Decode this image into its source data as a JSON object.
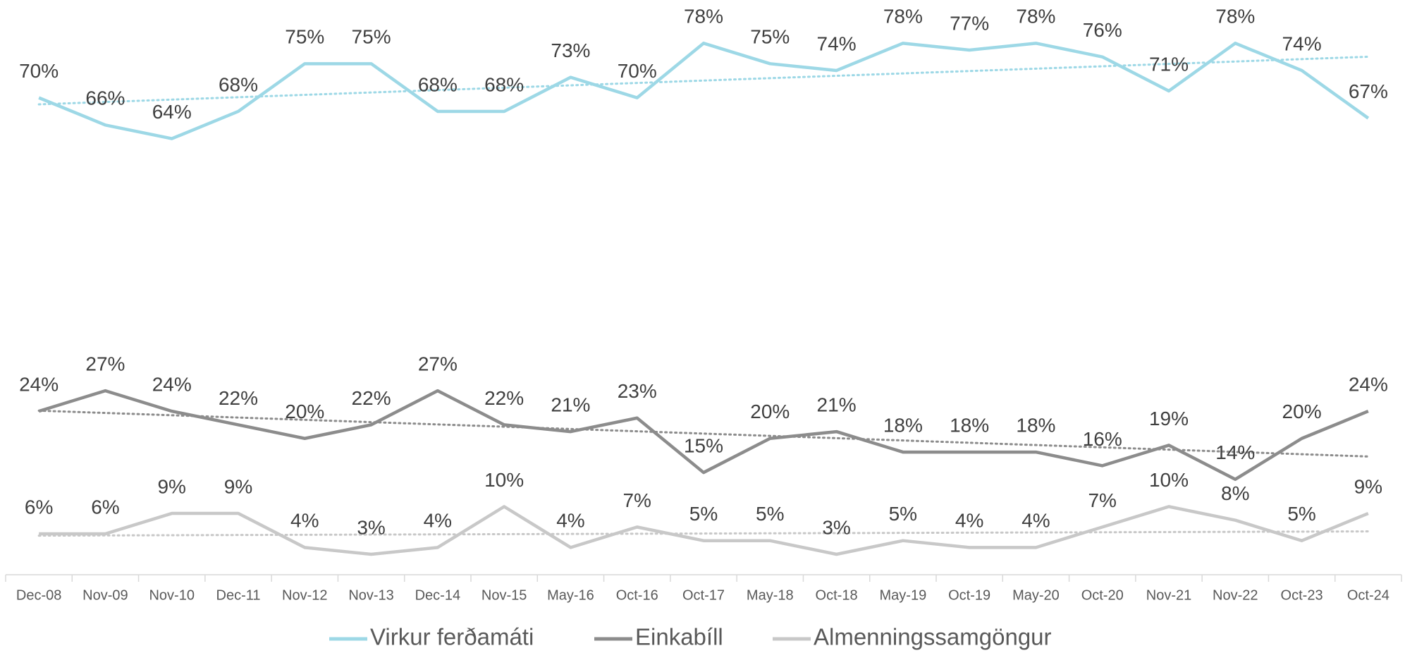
{
  "chart_data": {
    "type": "line",
    "categories": [
      "Dec-08",
      "Nov-09",
      "Nov-10",
      "Dec-11",
      "Nov-12",
      "Nov-13",
      "Dec-14",
      "Nov-15",
      "May-16",
      "Oct-16",
      "Oct-17",
      "May-18",
      "Oct-18",
      "May-19",
      "Oct-19",
      "May-20",
      "Oct-20",
      "Nov-21",
      "Nov-22",
      "Oct-23",
      "Oct-24"
    ],
    "series": [
      {
        "name": "Virkur ferðamáti",
        "color": "#9dd8e6",
        "values": [
          70,
          66,
          64,
          68,
          75,
          75,
          68,
          68,
          73,
          70,
          78,
          75,
          74,
          78,
          77,
          78,
          76,
          71,
          78,
          74,
          67
        ],
        "value_labels": [
          "70%",
          "66%",
          "64%",
          "68%",
          "75%",
          "75%",
          "68%",
          "68%",
          "73%",
          "70%",
          "78%",
          "75%",
          "74%",
          "78%",
          "77%",
          "78%",
          "76%",
          "71%",
          "78%",
          "74%",
          "67%"
        ]
      },
      {
        "name": "Einkabíll",
        "color": "#8c8c8c",
        "values": [
          24,
          27,
          24,
          22,
          20,
          22,
          27,
          22,
          21,
          23,
          15,
          20,
          21,
          18,
          18,
          18,
          16,
          19,
          14,
          20,
          24
        ],
        "value_labels": [
          "24%",
          "27%",
          "24%",
          "22%",
          "20%",
          "22%",
          "27%",
          "22%",
          "21%",
          "23%",
          "15%",
          "20%",
          "21%",
          "18%",
          "18%",
          "18%",
          "16%",
          "19%",
          "14%",
          "20%",
          "24%"
        ]
      },
      {
        "name": "Almenningssamgöngur",
        "color": "#c8c8c8",
        "values": [
          6,
          6,
          9,
          9,
          4,
          3,
          4,
          10,
          4,
          7,
          5,
          5,
          3,
          5,
          4,
          4,
          7,
          10,
          8,
          5,
          9
        ],
        "value_labels": [
          "6%",
          "6%",
          "9%",
          "9%",
          "4%",
          "3%",
          "4%",
          "10%",
          "4%",
          "7%",
          "5%",
          "5%",
          "3%",
          "5%",
          "4%",
          "4%",
          "7%",
          "10%",
          "8%",
          "5%",
          "9%"
        ]
      }
    ],
    "ylim": [
      0,
      80
    ],
    "trendline": true,
    "legend": "bottom"
  }
}
